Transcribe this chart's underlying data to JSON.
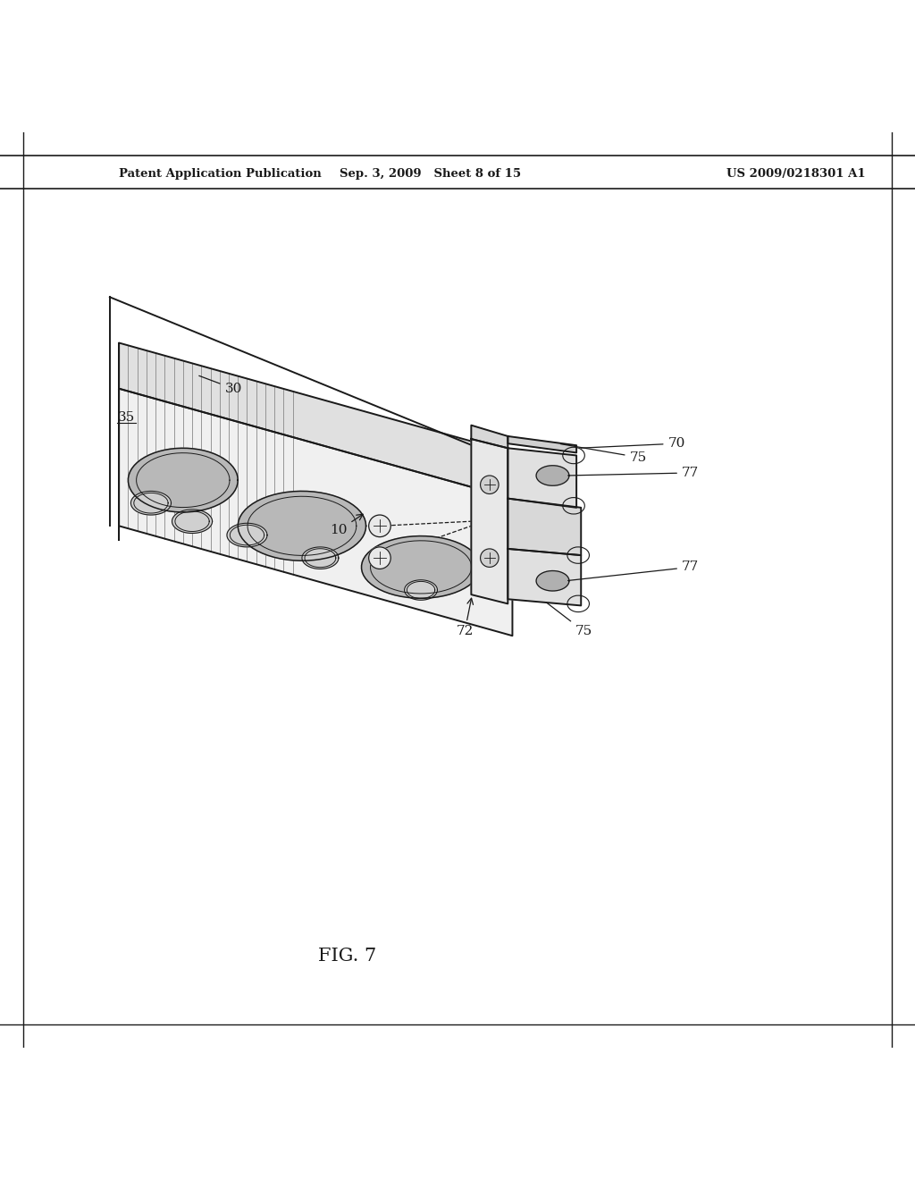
{
  "title": "FIG. 7",
  "header_left": "Patent Application Publication",
  "header_mid": "Sep. 3, 2009   Sheet 8 of 15",
  "header_right": "US 2009/0218301 A1",
  "bg_color": "#ffffff",
  "line_color": "#1a1a1a",
  "label_color": "#1a1a1a"
}
